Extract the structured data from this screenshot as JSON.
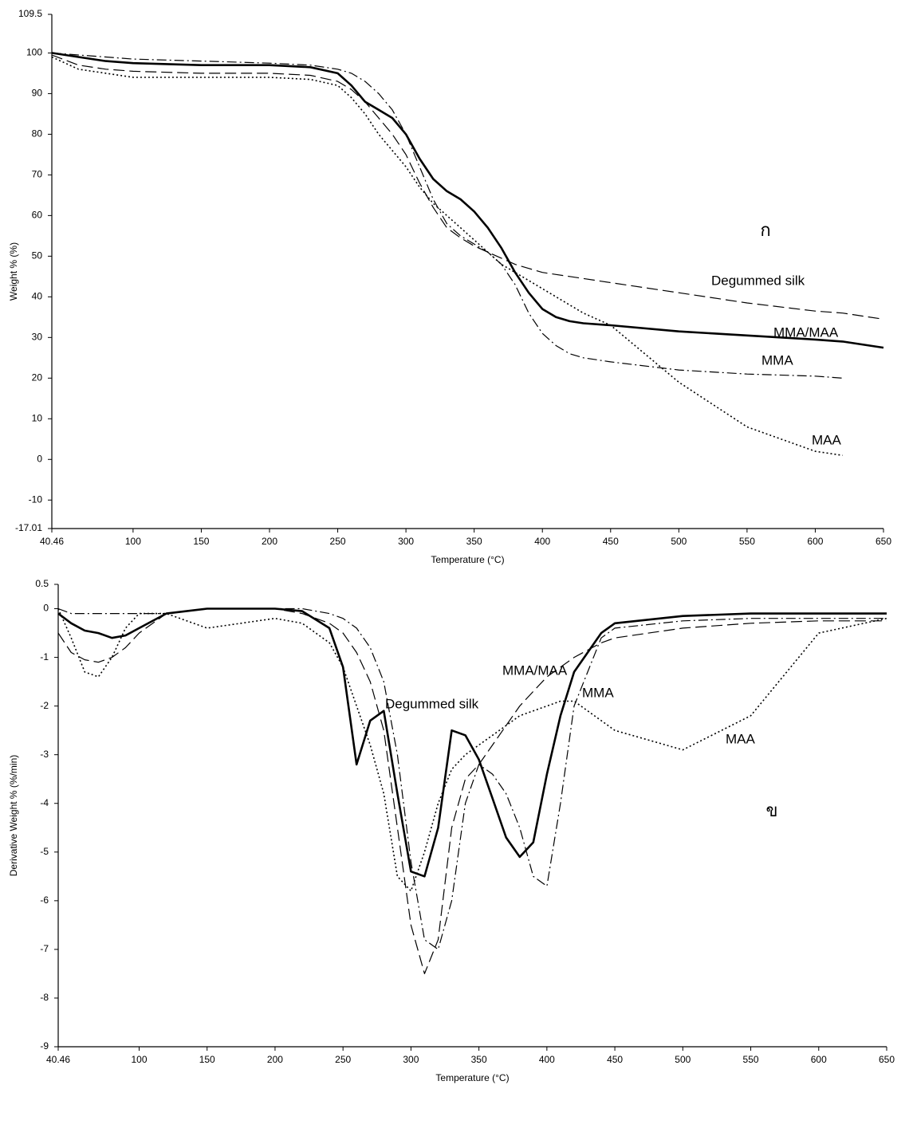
{
  "chart_data": [
    {
      "type": "line",
      "x_label": "Temperature (°C)",
      "y_label": "Weight % (%)",
      "annotations": [
        "ก"
      ],
      "x": [
        40.46,
        60,
        80,
        100,
        150,
        200,
        230,
        250,
        260,
        270,
        280,
        290,
        300,
        310,
        320,
        330,
        340,
        350,
        360,
        370,
        380,
        390,
        400,
        410,
        420,
        430,
        450,
        500,
        550,
        600,
        620,
        650
      ],
      "series": [
        {
          "name": "Degummed silk",
          "color": "#000000",
          "dash": "longdash",
          "width": 1.2,
          "values": [
            99.5,
            97,
            96,
            95.5,
            95,
            95,
            94.5,
            93,
            91,
            88,
            84,
            80,
            75,
            68,
            62,
            57,
            54.5,
            52.5,
            51,
            49.5,
            48,
            47,
            46,
            45.5,
            45,
            44.5,
            43.5,
            41,
            38.5,
            36.5,
            36,
            34.5
          ]
        },
        {
          "name": "MMA/MAA",
          "color": "#000000",
          "dash": "solid",
          "width": 2.6,
          "values": [
            100,
            99,
            98,
            97.5,
            97,
            97,
            96.5,
            95,
            92,
            88,
            86,
            84,
            80,
            74,
            69,
            66,
            64,
            61,
            57,
            52,
            46,
            41,
            37,
            35,
            34,
            33.5,
            33,
            31.5,
            30.5,
            29.5,
            29,
            27.5
          ]
        },
        {
          "name": "MMA",
          "color": "#000000",
          "dash": "dashdot",
          "width": 1.2,
          "values": [
            100,
            99.5,
            99,
            98.5,
            98,
            97.5,
            97,
            96,
            95,
            93,
            90,
            86,
            80,
            72,
            64,
            58,
            55,
            53,
            51,
            48,
            43,
            36,
            31,
            28,
            26,
            25,
            24,
            22,
            21,
            20.5,
            20,
            null
          ]
        },
        {
          "name": "MAA",
          "color": "#000000",
          "dash": "dotted",
          "width": 1.6,
          "values": [
            99,
            96,
            95,
            94,
            94,
            94,
            93.5,
            92,
            89,
            85,
            80,
            76,
            72,
            67,
            63,
            60,
            57,
            54,
            51,
            48,
            46,
            44,
            42,
            40,
            38,
            36,
            33,
            19,
            8,
            2,
            1,
            null
          ]
        }
      ],
      "xlim": [
        40.46,
        650
      ],
      "xticks": [
        40.46,
        100,
        150,
        200,
        250,
        300,
        350,
        400,
        450,
        500,
        550,
        600,
        650
      ],
      "ylim": [
        -17.01,
        109.5
      ],
      "yticks": [
        -17.01,
        -10,
        0,
        10,
        20,
        30,
        40,
        50,
        60,
        70,
        80,
        90,
        100,
        109.5
      ],
      "grid": false
    },
    {
      "type": "line",
      "x_label": "Temperature (°C)",
      "y_label": "Derivative Weight % (%/min)",
      "annotations": [
        "ข"
      ],
      "x": [
        40.46,
        50,
        60,
        70,
        80,
        90,
        100,
        120,
        150,
        200,
        220,
        240,
        250,
        260,
        270,
        280,
        290,
        300,
        310,
        320,
        330,
        340,
        350,
        360,
        370,
        380,
        390,
        400,
        410,
        420,
        440,
        450,
        500,
        550,
        600,
        650
      ],
      "series": [
        {
          "name": "Degummed silk",
          "color": "#000000",
          "dash": "longdash",
          "width": 1.2,
          "values": [
            -0.5,
            -0.9,
            -1.05,
            -1.1,
            -1,
            -0.8,
            -0.5,
            -0.1,
            0,
            0,
            -0.1,
            -0.3,
            -0.5,
            -0.9,
            -1.5,
            -2.5,
            -4.5,
            -6.5,
            -7.5,
            -6.8,
            -4.5,
            -3.5,
            -3.2,
            -2.8,
            -2.4,
            -2,
            -1.7,
            -1.4,
            -1.2,
            -1,
            -0.7,
            -0.6,
            -0.4,
            -0.3,
            -0.25,
            -0.25
          ]
        },
        {
          "name": "MMA/MAA",
          "color": "#000000",
          "dash": "solid",
          "width": 2.6,
          "values": [
            -0.1,
            -0.3,
            -0.45,
            -0.5,
            -0.6,
            -0.55,
            -0.4,
            -0.1,
            0,
            0,
            -0.05,
            -0.4,
            -1.2,
            -3.2,
            -2.3,
            -2.1,
            -3.8,
            -5.4,
            -5.5,
            -4.5,
            -2.5,
            -2.6,
            -3.1,
            -3.9,
            -4.7,
            -5.1,
            -4.8,
            -3.4,
            -2.2,
            -1.3,
            -0.5,
            -0.3,
            -0.15,
            -0.1,
            -0.1,
            -0.1
          ]
        },
        {
          "name": "MMA",
          "color": "#000000",
          "dash": "dashdot",
          "width": 1.2,
          "values": [
            0,
            -0.1,
            -0.1,
            -0.1,
            -0.1,
            -0.1,
            -0.1,
            -0.1,
            0,
            0,
            0,
            -0.1,
            -0.2,
            -0.4,
            -0.8,
            -1.5,
            -3,
            -5.2,
            -6.8,
            -7,
            -6,
            -4,
            -3.2,
            -3.4,
            -3.8,
            -4.5,
            -5.5,
            -5.7,
            -4,
            -2,
            -0.6,
            -0.4,
            -0.25,
            -0.2,
            -0.2,
            -0.2
          ]
        },
        {
          "name": "MAA",
          "color": "#000000",
          "dash": "dotted",
          "width": 1.6,
          "values": [
            0,
            -0.6,
            -1.3,
            -1.4,
            -1,
            -0.4,
            -0.1,
            -0.1,
            -0.4,
            -0.2,
            -0.3,
            -0.7,
            -1.2,
            -2,
            -2.8,
            -3.8,
            -5.5,
            -5.8,
            -5,
            -4,
            -3.3,
            -3,
            -2.8,
            -2.6,
            -2.4,
            -2.2,
            -2.1,
            -2,
            -1.9,
            -1.9,
            -2.3,
            -2.5,
            -2.9,
            -2.2,
            -0.5,
            -0.2
          ]
        }
      ],
      "xlim": [
        40.46,
        650
      ],
      "xticks": [
        40.46,
        100,
        150,
        200,
        250,
        300,
        350,
        400,
        450,
        500,
        550,
        600,
        650
      ],
      "ylim": [
        -9,
        0.5
      ],
      "yticks": [
        -9,
        -8,
        -7,
        -6,
        -5,
        -4,
        -3,
        -2,
        -1,
        0,
        0.5
      ],
      "grid": false
    }
  ]
}
